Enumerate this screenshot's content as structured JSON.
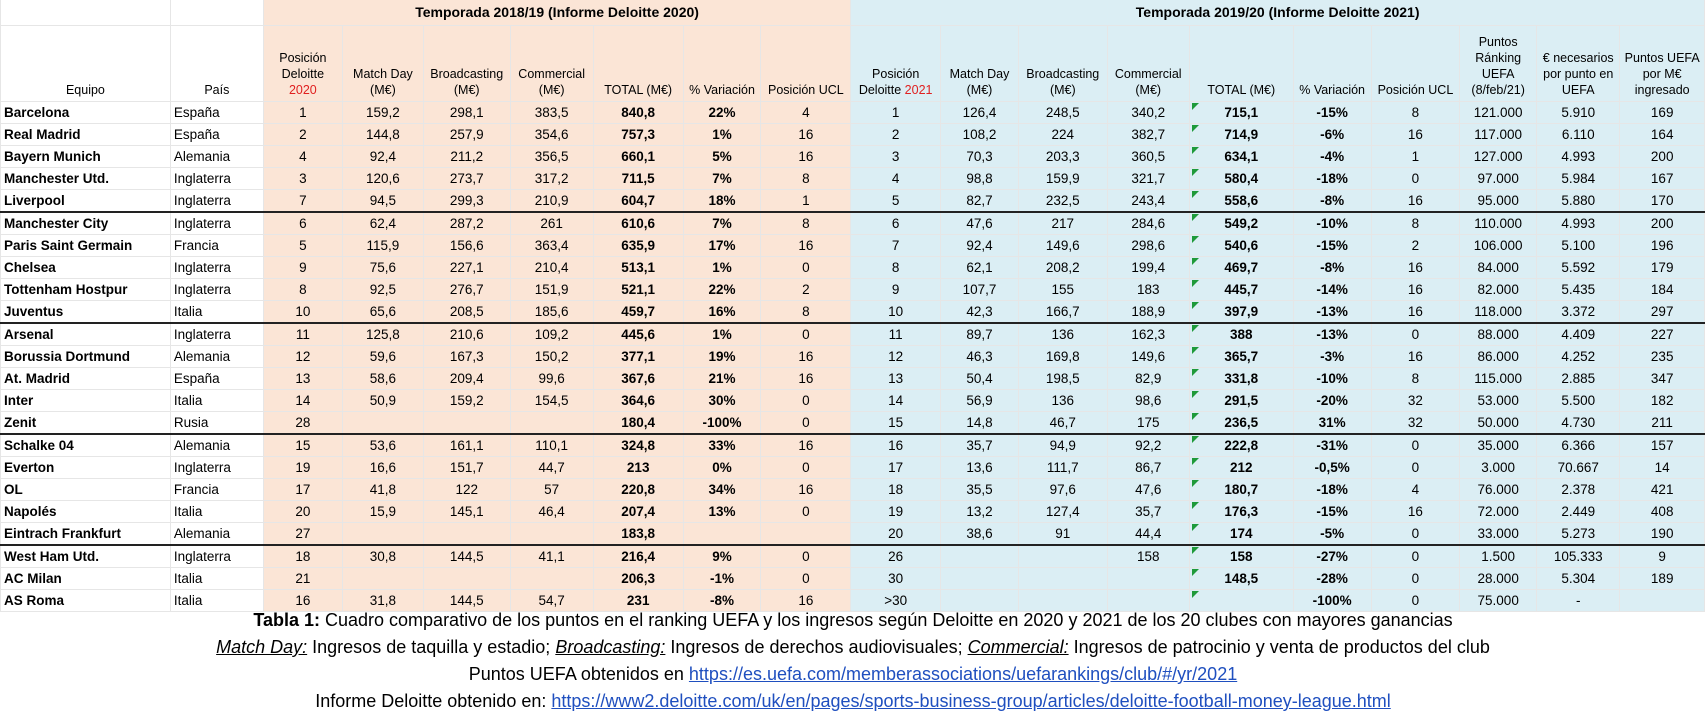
{
  "group_a_title": "Temporada 2018/19 (Informe Deloitte 2020)",
  "group_b_title": "Temporada 2019/20 (Informe Deloitte 2021)",
  "headers": {
    "equipo": "Equipo",
    "pais": "País",
    "pos_a_1": "Posición",
    "pos_a_2": "Deloitte ",
    "pos_a_year": "2020",
    "matchday": "Match Day (M€)",
    "broadcasting": "Broadcasting (M€)",
    "commercial": "Commercial (M€)",
    "total": "TOTAL (M€)",
    "variacion": "% Variación",
    "ucl": "Posición UCL",
    "pos_b_1": "Posición",
    "pos_b_2": "Deloitte ",
    "pos_b_year": "2021",
    "uefa_points": "Puntos Ránking UEFA (8/feb/21)",
    "eur_per_point": "€ necesarios por punto en UEFA",
    "points_per_meur": "Puntos UEFA por M€ ingresado"
  },
  "rows": [
    {
      "team": "Barcelona",
      "country": "España",
      "pa": "1",
      "md_a": "159,2",
      "br_a": "298,1",
      "co_a": "383,5",
      "tot_a": "840,8",
      "var_a": "22%",
      "ucl_a": "4",
      "pb": "1",
      "md_b": "126,4",
      "br_b": "248,5",
      "co_b": "340,2",
      "tot_b": "715,1",
      "var_b": "-15%",
      "ucl_b": "8",
      "pts": "121.000",
      "epp": "5.910",
      "ppm": "169"
    },
    {
      "team": "Real Madrid",
      "country": "España",
      "pa": "2",
      "md_a": "144,8",
      "br_a": "257,9",
      "co_a": "354,6",
      "tot_a": "757,3",
      "var_a": "1%",
      "ucl_a": "16",
      "pb": "2",
      "md_b": "108,2",
      "br_b": "224",
      "co_b": "382,7",
      "tot_b": "714,9",
      "var_b": "-6%",
      "ucl_b": "16",
      "pts": "117.000",
      "epp": "6.110",
      "ppm": "164"
    },
    {
      "team": "Bayern Munich",
      "country": "Alemania",
      "pa": "4",
      "md_a": "92,4",
      "br_a": "211,2",
      "co_a": "356,5",
      "tot_a": "660,1",
      "var_a": "5%",
      "ucl_a": "16",
      "pb": "3",
      "md_b": "70,3",
      "br_b": "203,3",
      "co_b": "360,5",
      "tot_b": "634,1",
      "var_b": "-4%",
      "ucl_b": "1",
      "pts": "127.000",
      "epp": "4.993",
      "ppm": "200"
    },
    {
      "team": "Manchester Utd.",
      "country": "Inglaterra",
      "pa": "3",
      "md_a": "120,6",
      "br_a": "273,7",
      "co_a": "317,2",
      "tot_a": "711,5",
      "var_a": "7%",
      "ucl_a": "8",
      "pb": "4",
      "md_b": "98,8",
      "br_b": "159,9",
      "co_b": "321,7",
      "tot_b": "580,4",
      "var_b": "-18%",
      "ucl_b": "0",
      "pts": "97.000",
      "epp": "5.984",
      "ppm": "167"
    },
    {
      "team": "Liverpool",
      "country": "Inglaterra",
      "pa": "7",
      "md_a": "94,5",
      "br_a": "299,3",
      "co_a": "210,9",
      "tot_a": "604,7",
      "var_a": "18%",
      "ucl_a": "1",
      "pb": "5",
      "md_b": "82,7",
      "br_b": "232,5",
      "co_b": "243,4",
      "tot_b": "558,6",
      "var_b": "-8%",
      "ucl_b": "16",
      "pts": "95.000",
      "epp": "5.880",
      "ppm": "170"
    },
    {
      "team": "Manchester City",
      "country": "Inglaterra",
      "pa": "6",
      "md_a": "62,4",
      "br_a": "287,2",
      "co_a": "261",
      "tot_a": "610,6",
      "var_a": "7%",
      "ucl_a": "8",
      "pb": "6",
      "md_b": "47,6",
      "br_b": "217",
      "co_b": "284,6",
      "tot_b": "549,2",
      "var_b": "-10%",
      "ucl_b": "8",
      "pts": "110.000",
      "epp": "4.993",
      "ppm": "200"
    },
    {
      "team": "Paris Saint Germain",
      "country": "Francia",
      "pa": "5",
      "md_a": "115,9",
      "br_a": "156,6",
      "co_a": "363,4",
      "tot_a": "635,9",
      "var_a": "17%",
      "ucl_a": "16",
      "pb": "7",
      "md_b": "92,4",
      "br_b": "149,6",
      "co_b": "298,6",
      "tot_b": "540,6",
      "var_b": "-15%",
      "ucl_b": "2",
      "pts": "106.000",
      "epp": "5.100",
      "ppm": "196"
    },
    {
      "team": "Chelsea",
      "country": "Inglaterra",
      "pa": "9",
      "md_a": "75,6",
      "br_a": "227,1",
      "co_a": "210,4",
      "tot_a": "513,1",
      "var_a": "1%",
      "ucl_a": "0",
      "pb": "8",
      "md_b": "62,1",
      "br_b": "208,2",
      "co_b": "199,4",
      "tot_b": "469,7",
      "var_b": "-8%",
      "ucl_b": "16",
      "pts": "84.000",
      "epp": "5.592",
      "ppm": "179"
    },
    {
      "team": "Tottenham Hostpur",
      "country": "Inglaterra",
      "pa": "8",
      "md_a": "92,5",
      "br_a": "276,7",
      "co_a": "151,9",
      "tot_a": "521,1",
      "var_a": "22%",
      "ucl_a": "2",
      "pb": "9",
      "md_b": "107,7",
      "br_b": "155",
      "co_b": "183",
      "tot_b": "445,7",
      "var_b": "-14%",
      "ucl_b": "16",
      "pts": "82.000",
      "epp": "5.435",
      "ppm": "184"
    },
    {
      "team": "Juventus",
      "country": "Italia",
      "pa": "10",
      "md_a": "65,6",
      "br_a": "208,5",
      "co_a": "185,6",
      "tot_a": "459,7",
      "var_a": "16%",
      "ucl_a": "8",
      "pb": "10",
      "md_b": "42,3",
      "br_b": "166,7",
      "co_b": "188,9",
      "tot_b": "397,9",
      "var_b": "-13%",
      "ucl_b": "16",
      "pts": "118.000",
      "epp": "3.372",
      "ppm": "297"
    },
    {
      "team": "Arsenal",
      "country": "Inglaterra",
      "pa": "11",
      "md_a": "125,8",
      "br_a": "210,6",
      "co_a": "109,2",
      "tot_a": "445,6",
      "var_a": "1%",
      "ucl_a": "0",
      "pb": "11",
      "md_b": "89,7",
      "br_b": "136",
      "co_b": "162,3",
      "tot_b": "388",
      "var_b": "-13%",
      "ucl_b": "0",
      "pts": "88.000",
      "epp": "4.409",
      "ppm": "227"
    },
    {
      "team": "Borussia Dortmund",
      "country": "Alemania",
      "pa": "12",
      "md_a": "59,6",
      "br_a": "167,3",
      "co_a": "150,2",
      "tot_a": "377,1",
      "var_a": "19%",
      "ucl_a": "16",
      "pb": "12",
      "md_b": "46,3",
      "br_b": "169,8",
      "co_b": "149,6",
      "tot_b": "365,7",
      "var_b": "-3%",
      "ucl_b": "16",
      "pts": "86.000",
      "epp": "4.252",
      "ppm": "235"
    },
    {
      "team": "At. Madrid",
      "country": "España",
      "pa": "13",
      "md_a": "58,6",
      "br_a": "209,4",
      "co_a": "99,6",
      "tot_a": "367,6",
      "var_a": "21%",
      "ucl_a": "16",
      "pb": "13",
      "md_b": "50,4",
      "br_b": "198,5",
      "co_b": "82,9",
      "tot_b": "331,8",
      "var_b": "-10%",
      "ucl_b": "8",
      "pts": "115.000",
      "epp": "2.885",
      "ppm": "347"
    },
    {
      "team": "Inter",
      "country": "Italia",
      "pa": "14",
      "md_a": "50,9",
      "br_a": "159,2",
      "co_a": "154,5",
      "tot_a": "364,6",
      "var_a": "30%",
      "ucl_a": "0",
      "pb": "14",
      "md_b": "56,9",
      "br_b": "136",
      "co_b": "98,6",
      "tot_b": "291,5",
      "var_b": "-20%",
      "ucl_b": "32",
      "pts": "53.000",
      "epp": "5.500",
      "ppm": "182"
    },
    {
      "team": "Zenit",
      "country": "Rusia",
      "pa": "28",
      "md_a": "",
      "br_a": "",
      "co_a": "",
      "tot_a": "180,4",
      "var_a": "-100%",
      "ucl_a": "0",
      "pb": "15",
      "md_b": "14,8",
      "br_b": "46,7",
      "co_b": "175",
      "tot_b": "236,5",
      "var_b": "31%",
      "ucl_b": "32",
      "pts": "50.000",
      "epp": "4.730",
      "ppm": "211"
    },
    {
      "team": "Schalke 04",
      "country": "Alemania",
      "pa": "15",
      "md_a": "53,6",
      "br_a": "161,1",
      "co_a": "110,1",
      "tot_a": "324,8",
      "var_a": "33%",
      "ucl_a": "16",
      "pb": "16",
      "md_b": "35,7",
      "br_b": "94,9",
      "co_b": "92,2",
      "tot_b": "222,8",
      "var_b": "-31%",
      "ucl_b": "0",
      "pts": "35.000",
      "epp": "6.366",
      "ppm": "157"
    },
    {
      "team": "Everton",
      "country": "Inglaterra",
      "pa": "19",
      "md_a": "16,6",
      "br_a": "151,7",
      "co_a": "44,7",
      "tot_a": "213",
      "var_a": "0%",
      "ucl_a": "0",
      "pb": "17",
      "md_b": "13,6",
      "br_b": "111,7",
      "co_b": "86,7",
      "tot_b": "212",
      "var_b": "-0,5%",
      "ucl_b": "0",
      "pts": "3.000",
      "epp": "70.667",
      "ppm": "14"
    },
    {
      "team": "OL",
      "country": "Francia",
      "pa": "17",
      "md_a": "41,8",
      "br_a": "122",
      "co_a": "57",
      "tot_a": "220,8",
      "var_a": "34%",
      "ucl_a": "16",
      "pb": "18",
      "md_b": "35,5",
      "br_b": "97,6",
      "co_b": "47,6",
      "tot_b": "180,7",
      "var_b": "-18%",
      "ucl_b": "4",
      "pts": "76.000",
      "epp": "2.378",
      "ppm": "421"
    },
    {
      "team": "Napolés",
      "country": "Italia",
      "pa": "20",
      "md_a": "15,9",
      "br_a": "145,1",
      "co_a": "46,4",
      "tot_a": "207,4",
      "var_a": "13%",
      "ucl_a": "0",
      "pb": "19",
      "md_b": "13,2",
      "br_b": "127,4",
      "co_b": "35,7",
      "tot_b": "176,3",
      "var_b": "-15%",
      "ucl_b": "16",
      "pts": "72.000",
      "epp": "2.449",
      "ppm": "408"
    },
    {
      "team": "Eintrach Frankfurt",
      "country": "Alemania",
      "pa": "27",
      "md_a": "",
      "br_a": "",
      "co_a": "",
      "tot_a": "183,8",
      "var_a": "",
      "ucl_a": "",
      "pb": "20",
      "md_b": "38,6",
      "br_b": "91",
      "co_b": "44,4",
      "tot_b": "174",
      "var_b": "-5%",
      "ucl_b": "0",
      "pts": "33.000",
      "epp": "5.273",
      "ppm": "190"
    },
    {
      "team": "West Ham Utd.",
      "country": "Inglaterra",
      "pa": "18",
      "md_a": "30,8",
      "br_a": "144,5",
      "co_a": "41,1",
      "tot_a": "216,4",
      "var_a": "9%",
      "ucl_a": "0",
      "pb": "26",
      "md_b": "",
      "br_b": "",
      "co_b": "158",
      "tot_b": "158",
      "var_b": "-27%",
      "ucl_b": "0",
      "pts": "1.500",
      "epp": "105.333",
      "ppm": "9"
    },
    {
      "team": "AC Milan",
      "country": "Italia",
      "pa": "21",
      "md_a": "",
      "br_a": "",
      "co_a": "",
      "tot_a": "206,3",
      "var_a": "-1%",
      "ucl_a": "0",
      "pb": "30",
      "md_b": "",
      "br_b": "",
      "co_b": "",
      "tot_b": "148,5",
      "var_b": "-28%",
      "ucl_b": "0",
      "pts": "28.000",
      "epp": "5.304",
      "ppm": "189"
    },
    {
      "team": "AS Roma",
      "country": "Italia",
      "pa": "16",
      "md_a": "31,8",
      "br_a": "144,5",
      "co_a": "54,7",
      "tot_a": "231",
      "var_a": "-8%",
      "ucl_a": "16",
      "pb": ">30",
      "md_b": "",
      "br_b": "",
      "co_b": "",
      "tot_b": "",
      "var_b": "-100%",
      "ucl_b": "0",
      "pts": "75.000",
      "epp": "-",
      "ppm": ""
    }
  ],
  "caption": {
    "line1_bold": "Tabla 1:",
    "line1_rest": " Cuadro comparativo de los puntos en el ranking UEFA y los ingresos según Deloitte en 2020 y 2021 de los 20 clubes con mayores ganancias",
    "md_term": "Match Day:",
    "md_def": " Ingresos de taquilla y estadio; ",
    "br_term": "Broadcasting:",
    "br_def": " Ingresos de derechos audiovisuales; ",
    "co_term": "Commercial:",
    "co_def": " Ingresos de patrocinio y venta de productos del club",
    "line3_text": "Puntos UEFA obtenidos en ",
    "line3_link": "https://es.uefa.com/memberassociations/uefarankings/club/#/yr/2021",
    "line4_text": "Informe Deloitte obtenido en: ",
    "line4_link": "https://www2.deloitte.com/uk/en/pages/sports-business-group/articles/deloitte-football-money-league.html"
  }
}
